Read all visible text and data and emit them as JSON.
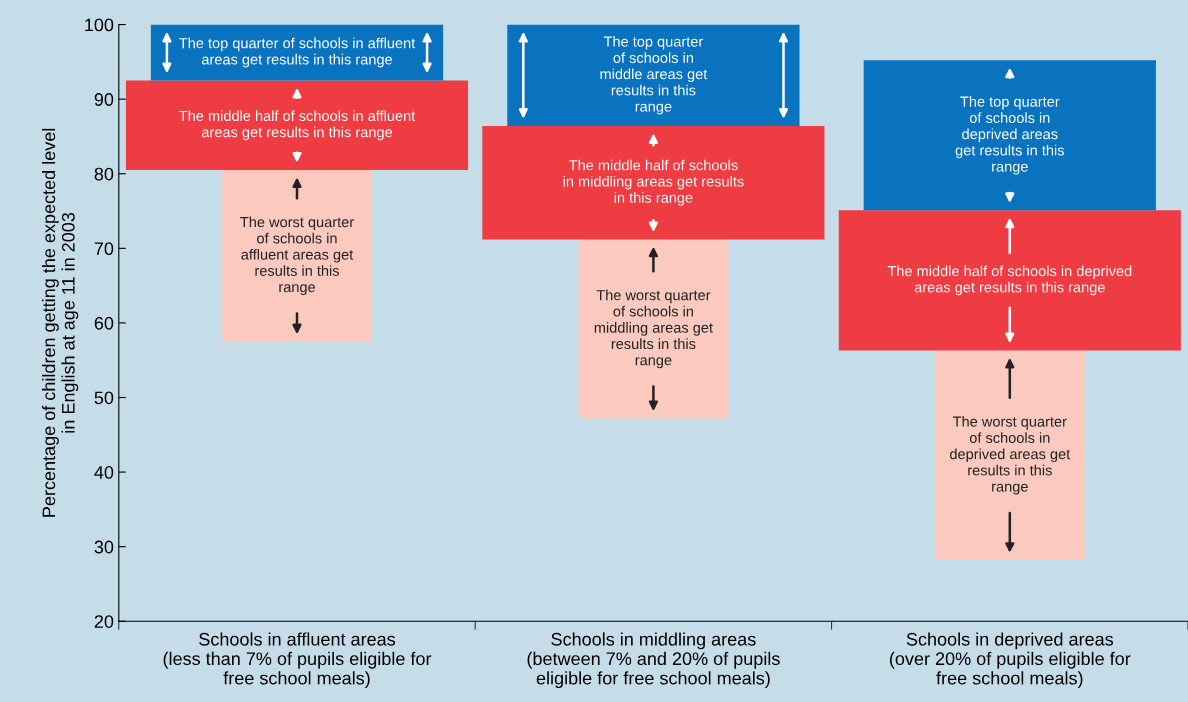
{
  "chart_data": {
    "type": "bar",
    "ylabel": "Percentage of children getting the expected level\nin English at age 11 in 2003",
    "categories": [
      "Schools in affluent areas\n(less than 7% of pupils eligible for\nfree school meals)",
      "Schools in middling areas\n(between 7% and 20% of pupils\neligible for free school meals)",
      "Schools in deprived areas\n(over 20% of pupils eligible for\nfree school meals)"
    ],
    "series": [
      {
        "color": "#fbc9bd",
        "base": [
          57.5,
          47.2,
          28.2
        ],
        "values": [
          23,
          24,
          28.1
        ]
      },
      {
        "color": "#ef3b42",
        "base": [
          80.5,
          71.2,
          56.3
        ],
        "values": [
          12,
          15.2,
          18.8
        ]
      },
      {
        "color": "#0a73c0",
        "base": [
          92.5,
          86.4,
          75.1
        ],
        "values": [
          7.5,
          13.6,
          20.1
        ]
      }
    ],
    "ylim": [
      20,
      100
    ],
    "yticks": [
      20,
      30,
      40,
      50,
      60,
      70,
      80,
      90,
      100
    ],
    "grid": false,
    "legend": false,
    "annotations": [
      "The worst quarter\nof schools in\naffluent areas get\nresults in this\nrange",
      "The middle half of schools in affluent\nareas get results in this range",
      "The top quarter of schools in affluent\nareas get results in this range",
      "The worst quarter\nof schools in\nmiddling areas get\nresults in this\nrange",
      "The middle half of schools\nin middling areas get results\nin this range",
      "The top quarter\nof schools in\nmiddle areas get\nresults in this\nrange",
      "The worst quarter\nof schools in\ndeprived areas get\nresults in this\nrange",
      "The middle half of schools in deprived\nareas get results in this range",
      "The top quarter\nof schools in\ndeprived areas\nget results in this\nrange"
    ]
  }
}
